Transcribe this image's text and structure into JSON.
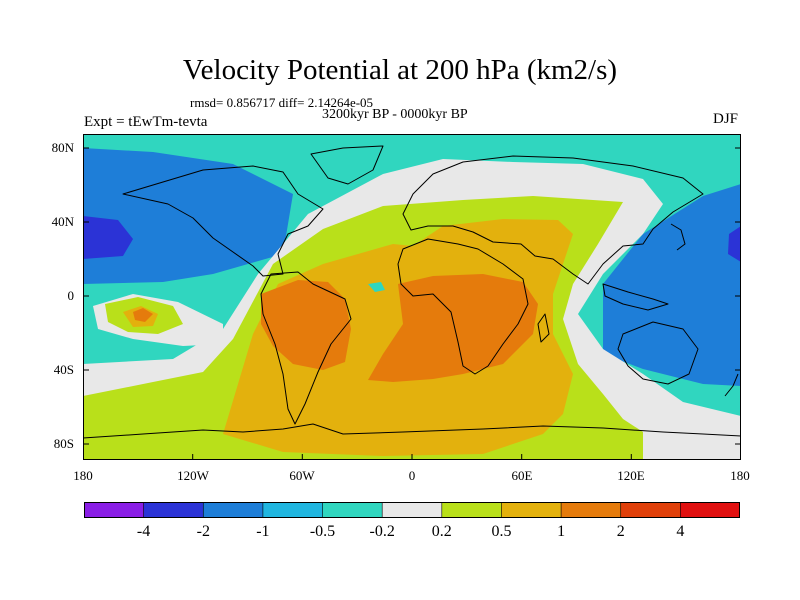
{
  "header": {
    "title": "Velocity Potential at 200 hPa (km2/s)",
    "stats": "rmsd= 0.856717 diff= 2.14264e-05",
    "experiment": "Expt = tEwTm-tevta",
    "period": "3200kyr BP - 0000kyr BP",
    "season": "DJF"
  },
  "axes": {
    "lat_ticks": [
      "80N",
      "40N",
      "0",
      "40S",
      "80S"
    ],
    "lon_ticks": [
      "180",
      "120W",
      "60W",
      "0",
      "60E",
      "120E",
      "180"
    ]
  },
  "colorbar": {
    "labels": [
      "-4",
      "-2",
      "-1",
      "-0.5",
      "-0.2",
      "0.2",
      "0.5",
      "1",
      "2",
      "4"
    ],
    "colors": [
      "#8a1ee6",
      "#2b33d6",
      "#1e7ed8",
      "#20b6e0",
      "#30d6bf",
      "#e8e8e8",
      "#b9e01a",
      "#e3b10d",
      "#e57b0c",
      "#e0400a",
      "#e01010"
    ]
  },
  "map_colors": {
    "dark_blue": "#2b33d6",
    "blue": "#1e7ed8",
    "light_blue": "#20b6e0",
    "teal": "#30d6bf",
    "white": "#e8e8e8",
    "green": "#b9e01a",
    "yellow_orange": "#e3b10d",
    "orange": "#e57b0c"
  }
}
